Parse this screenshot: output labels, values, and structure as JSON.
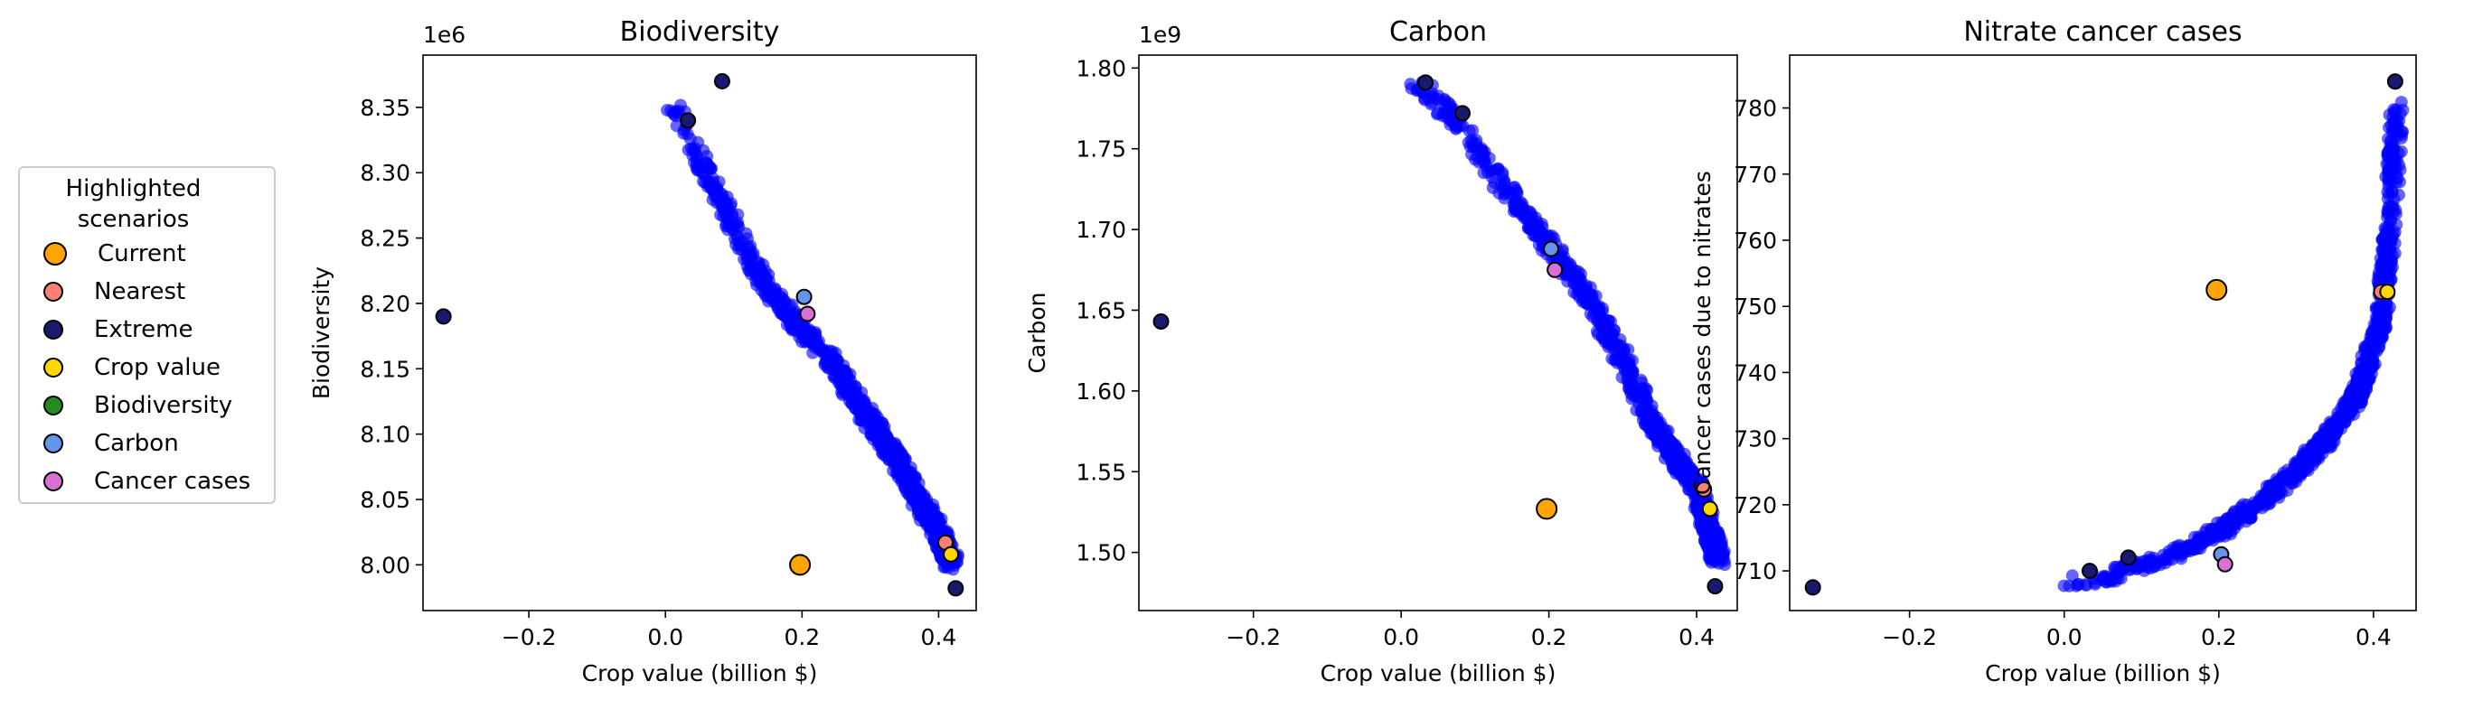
{
  "legend": {
    "title": "Highlighted\nscenarios",
    "items": [
      {
        "label": "Current",
        "color": "#ffa500"
      },
      {
        "label": "Nearest",
        "color": "#fa8072"
      },
      {
        "label": "Extreme",
        "color": "#191970"
      },
      {
        "label": "Crop value",
        "color": "#ffd700"
      },
      {
        "label": "Biodiversity",
        "color": "#228b22"
      },
      {
        "label": "Carbon",
        "color": "#6495ed"
      },
      {
        "label": "Cancer cases",
        "color": "#da70d6"
      }
    ]
  },
  "chart_data": [
    {
      "type": "scatter",
      "title": "Biodiversity",
      "xlabel": "Crop value (billion $)",
      "ylabel": "Biodiversity",
      "offset_label": "1e6",
      "xlim": [
        -0.355,
        0.455
      ],
      "ylim": [
        7.965,
        8.39
      ],
      "xticks": [
        -0.2,
        0.0,
        0.2,
        0.4
      ],
      "xtick_labels": [
        "−0.2",
        "0.0",
        "0.2",
        "0.4"
      ],
      "yticks": [
        8.0,
        8.05,
        8.1,
        8.15,
        8.2,
        8.25,
        8.3,
        8.35
      ],
      "ytick_labels": [
        "8.00",
        "8.05",
        "8.10",
        "8.15",
        "8.20",
        "8.25",
        "8.30",
        "8.35"
      ],
      "cloud_color": "#0000ff",
      "cloud_path": [
        [
          0.01,
          8.35
        ],
        [
          0.03,
          8.33
        ],
        [
          0.06,
          8.3
        ],
        [
          0.1,
          8.26
        ],
        [
          0.15,
          8.21
        ],
        [
          0.2,
          8.18
        ],
        [
          0.25,
          8.15
        ],
        [
          0.3,
          8.11
        ],
        [
          0.34,
          8.08
        ],
        [
          0.37,
          8.05
        ],
        [
          0.4,
          8.025
        ],
        [
          0.42,
          8.0
        ]
      ],
      "highlights": [
        {
          "name": "Current",
          "x": 0.197,
          "y": 8.0,
          "color": "#ffa500",
          "size": "large"
        },
        {
          "name": "Nearest",
          "x": 0.41,
          "y": 8.017,
          "color": "#fa8072"
        },
        {
          "name": "Crop value",
          "x": 0.418,
          "y": 8.008,
          "color": "#ffd700"
        },
        {
          "name": "Extreme",
          "x": 0.425,
          "y": 7.982,
          "color": "#191970"
        },
        {
          "name": "Extreme",
          "x": -0.325,
          "y": 8.19,
          "color": "#191970"
        },
        {
          "name": "Extreme",
          "x": 0.083,
          "y": 8.37,
          "color": "#191970"
        },
        {
          "name": "Extreme",
          "x": 0.033,
          "y": 8.34,
          "color": "#191970"
        },
        {
          "name": "Carbon",
          "x": 0.203,
          "y": 8.205,
          "color": "#6495ed"
        },
        {
          "name": "Cancer cases",
          "x": 0.208,
          "y": 8.192,
          "color": "#da70d6"
        }
      ]
    },
    {
      "type": "scatter",
      "title": "Carbon",
      "xlabel": "Crop value (billion $)",
      "ylabel": "Carbon",
      "offset_label": "1e9",
      "xlim": [
        -0.355,
        0.455
      ],
      "ylim": [
        1.464,
        1.808
      ],
      "xticks": [
        -0.2,
        0.0,
        0.2,
        0.4
      ],
      "xtick_labels": [
        "−0.2",
        "0.0",
        "0.2",
        "0.4"
      ],
      "yticks": [
        1.5,
        1.55,
        1.6,
        1.65,
        1.7,
        1.75,
        1.8
      ],
      "ytick_labels": [
        "1.50",
        "1.55",
        "1.60",
        "1.65",
        "1.70",
        "1.75",
        "1.80"
      ],
      "cloud_color": "#0000ff",
      "cloud_path": [
        [
          0.02,
          1.79
        ],
        [
          0.05,
          1.78
        ],
        [
          0.1,
          1.75
        ],
        [
          0.15,
          1.72
        ],
        [
          0.2,
          1.69
        ],
        [
          0.25,
          1.66
        ],
        [
          0.3,
          1.62
        ],
        [
          0.34,
          1.58
        ],
        [
          0.37,
          1.56
        ],
        [
          0.4,
          1.54
        ],
        [
          0.42,
          1.51
        ],
        [
          0.43,
          1.495
        ]
      ],
      "highlights": [
        {
          "name": "Current",
          "x": 0.197,
          "y": 1.527,
          "color": "#ffa500",
          "size": "large"
        },
        {
          "name": "Nearest",
          "x": 0.41,
          "y": 1.539,
          "color": "#fa8072"
        },
        {
          "name": "Crop value",
          "x": 0.418,
          "y": 1.527,
          "color": "#ffd700"
        },
        {
          "name": "Extreme",
          "x": 0.425,
          "y": 1.479,
          "color": "#191970"
        },
        {
          "name": "Extreme",
          "x": -0.325,
          "y": 1.643,
          "color": "#191970"
        },
        {
          "name": "Extreme",
          "x": 0.033,
          "y": 1.791,
          "color": "#191970"
        },
        {
          "name": "Extreme",
          "x": 0.083,
          "y": 1.772,
          "color": "#191970"
        },
        {
          "name": "Carbon",
          "x": 0.203,
          "y": 1.688,
          "color": "#6495ed"
        },
        {
          "name": "Cancer cases",
          "x": 0.208,
          "y": 1.675,
          "color": "#da70d6"
        }
      ]
    },
    {
      "type": "scatter",
      "title": "Nitrate cancer cases",
      "xlabel": "Crop value (billion $)",
      "ylabel": "Cancer cases due to nitrates",
      "offset_label": "",
      "xlim": [
        -0.355,
        0.455
      ],
      "ylim": [
        704,
        788
      ],
      "xticks": [
        -0.2,
        0.0,
        0.2,
        0.4
      ],
      "xtick_labels": [
        "−0.2",
        "0.0",
        "0.2",
        "0.4"
      ],
      "yticks": [
        710,
        720,
        730,
        740,
        750,
        760,
        770,
        780
      ],
      "ytick_labels": [
        "710",
        "720",
        "730",
        "740",
        "750",
        "760",
        "770",
        "780"
      ],
      "cloud_color": "#0000ff",
      "cloud_path": [
        [
          0.0,
          708
        ],
        [
          0.05,
          709
        ],
        [
          0.1,
          711
        ],
        [
          0.15,
          713
        ],
        [
          0.2,
          716
        ],
        [
          0.25,
          720
        ],
        [
          0.3,
          725
        ],
        [
          0.34,
          730
        ],
        [
          0.37,
          735
        ],
        [
          0.39,
          740
        ],
        [
          0.41,
          748
        ],
        [
          0.42,
          760
        ],
        [
          0.43,
          780
        ]
      ],
      "highlights": [
        {
          "name": "Current",
          "x": 0.197,
          "y": 752.5,
          "color": "#ffa500",
          "size": "large"
        },
        {
          "name": "Nearest",
          "x": 0.41,
          "y": 752.2,
          "color": "#fa8072"
        },
        {
          "name": "Crop value",
          "x": 0.418,
          "y": 752.2,
          "color": "#ffd700"
        },
        {
          "name": "Extreme",
          "x": 0.428,
          "y": 784,
          "color": "#191970"
        },
        {
          "name": "Extreme",
          "x": -0.325,
          "y": 707.5,
          "color": "#191970"
        },
        {
          "name": "Extreme",
          "x": 0.033,
          "y": 710,
          "color": "#191970"
        },
        {
          "name": "Extreme",
          "x": 0.083,
          "y": 712,
          "color": "#191970"
        },
        {
          "name": "Carbon",
          "x": 0.203,
          "y": 712.5,
          "color": "#6495ed"
        },
        {
          "name": "Cancer cases",
          "x": 0.208,
          "y": 711,
          "color": "#da70d6"
        }
      ]
    }
  ]
}
